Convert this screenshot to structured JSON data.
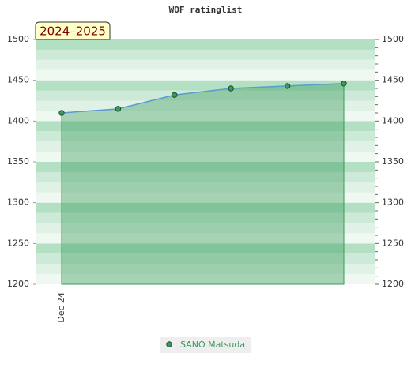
{
  "chart_data": {
    "type": "area",
    "title": "WOF ratinglist",
    "badge": "2024–2025",
    "categories": [
      "Dec 24",
      null,
      null,
      null,
      null,
      null
    ],
    "series": [
      {
        "name": "SANO Matsuda",
        "color": "#3a9a5a",
        "line_color": "#5b9bd5",
        "values": [
          1410,
          1415,
          1432,
          1440,
          1443,
          1446
        ]
      }
    ],
    "ylim": [
      1200,
      1500
    ],
    "yticks": [
      1200,
      1250,
      1300,
      1350,
      1400,
      1450,
      1500
    ],
    "y2lim": [
      1200,
      1500
    ],
    "y2ticks": [
      1200,
      1250,
      1300,
      1350,
      1400,
      1450,
      1500
    ],
    "legend": "bottom"
  }
}
